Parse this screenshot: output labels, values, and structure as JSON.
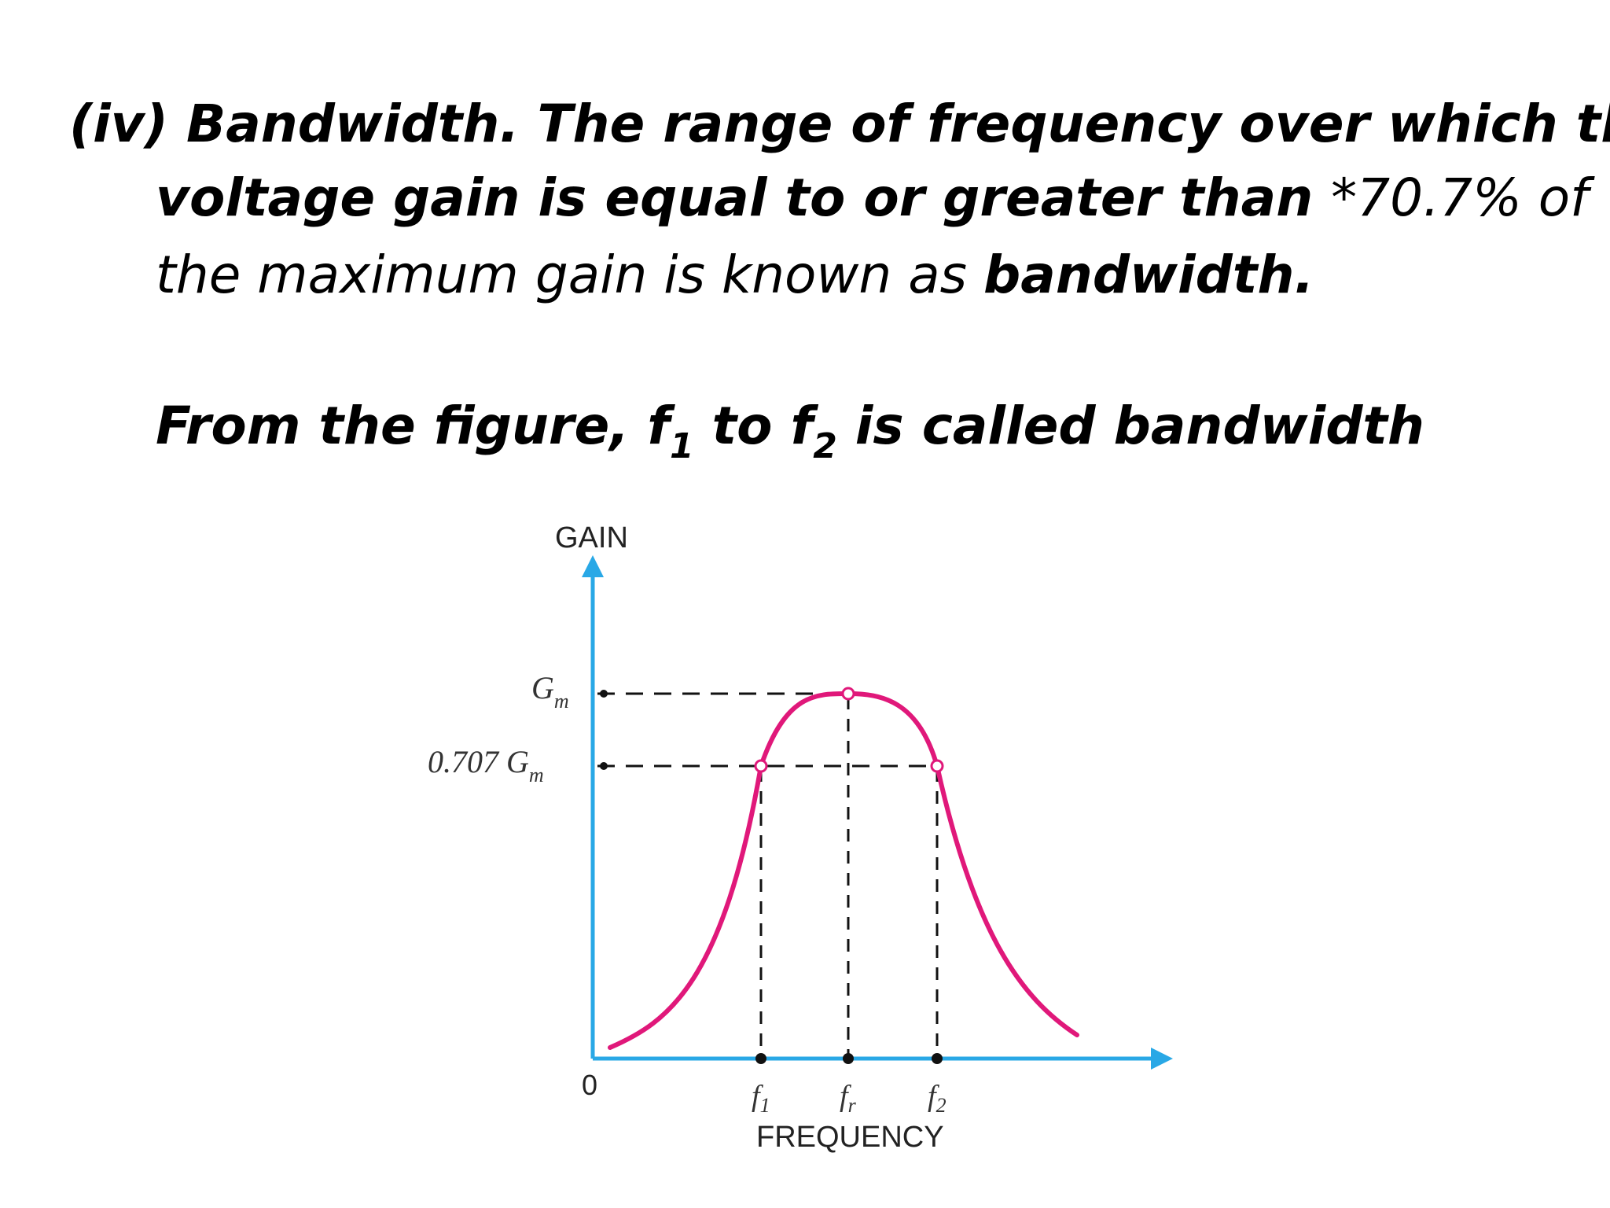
{
  "text": {
    "line1_bold": "(iv) Bandwidth. The range of frequency over which the",
    "line2_bold": "voltage gain is equal to or greater than ",
    "line2_normal": "*70.7% of",
    "line3_normal": "the maximum gain is known as ",
    "line3_bold": "bandwidth.",
    "line4_a": "From the figure, f",
    "line4_sub1": "1",
    "line4_b": "  to  f",
    "line4_sub2": "2",
    "line4_c": " is called bandwidth"
  },
  "figure": {
    "y_axis_label": "GAIN",
    "x_axis_label": "FREQUENCY",
    "origin_label": "0",
    "gm_label_main": "G",
    "gm_label_sub": "m",
    "gm707_label_main": "0.707 G",
    "gm707_label_sub": "m",
    "f1_main": "f",
    "f1_sub": "1",
    "fr_main": "f",
    "fr_sub": "r",
    "f2_main": "f",
    "f2_sub": "2",
    "colors": {
      "axis": "#29a8e6",
      "curve": "#e0187a",
      "dashed": "#111111"
    }
  }
}
